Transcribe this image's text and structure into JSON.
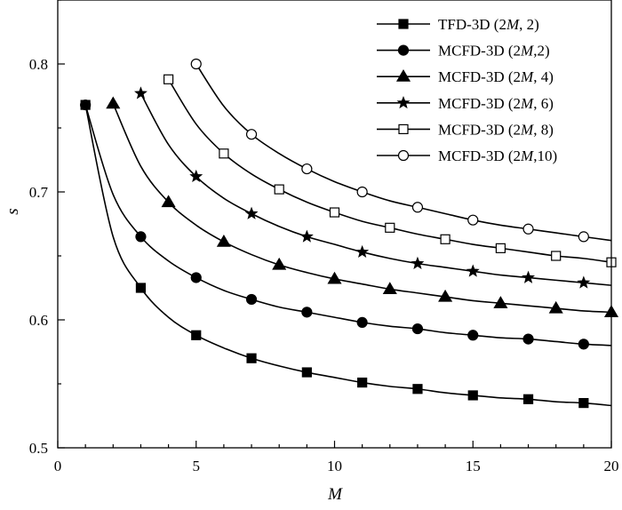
{
  "chart_data": {
    "type": "line",
    "xlabel": "M",
    "ylabel": "s",
    "xlim": [
      0,
      20
    ],
    "ylim": [
      0.5,
      0.85
    ],
    "xticks": [
      "0",
      "5",
      "10",
      "15",
      "20"
    ],
    "yticks": [
      "0.5",
      "0.6",
      "0.7",
      "0.8"
    ],
    "grid": false,
    "legend_position": "top-right",
    "series": [
      {
        "name": "TFD-3D (2M, 2)",
        "legend": {
          "pre": "TFD-3D (2",
          "it": "M",
          "post": ", 2)"
        },
        "marker": "square-filled",
        "x": [
          1,
          2,
          3,
          4,
          5,
          6,
          7,
          8,
          9,
          10,
          11,
          12,
          13,
          14,
          15,
          16,
          17,
          18,
          19,
          20
        ],
        "y": [
          0.768,
          0.665,
          0.625,
          0.602,
          0.588,
          0.578,
          0.57,
          0.564,
          0.559,
          0.555,
          0.551,
          0.548,
          0.546,
          0.543,
          0.541,
          0.539,
          0.538,
          0.536,
          0.535,
          0.533
        ],
        "marker_x": [
          1,
          3,
          5,
          7,
          9,
          11,
          13,
          15,
          17,
          19
        ]
      },
      {
        "name": "MCFD-3D (2M,2)",
        "legend": {
          "pre": "MCFD-3D (2",
          "it": "M",
          "post": ",2)"
        },
        "marker": "circle-filled",
        "x": [
          1,
          2,
          3,
          4,
          5,
          6,
          7,
          8,
          9,
          10,
          11,
          12,
          13,
          14,
          15,
          16,
          17,
          18,
          19,
          20
        ],
        "y": [
          0.768,
          0.698,
          0.665,
          0.646,
          0.633,
          0.623,
          0.616,
          0.61,
          0.606,
          0.602,
          0.598,
          0.595,
          0.593,
          0.59,
          0.588,
          0.586,
          0.585,
          0.583,
          0.581,
          0.58
        ],
        "marker_x": [
          1,
          3,
          5,
          7,
          9,
          11,
          13,
          15,
          17,
          19
        ]
      },
      {
        "name": "MCFD-3D (2M, 4)",
        "legend": {
          "pre": "MCFD-3D (2",
          "it": "M",
          "post": ", 4)"
        },
        "marker": "triangle-filled",
        "x": [
          2,
          3,
          4,
          5,
          6,
          7,
          8,
          9,
          10,
          11,
          12,
          13,
          14,
          15,
          16,
          17,
          18,
          19,
          20
        ],
        "y": [
          0.769,
          0.72,
          0.692,
          0.674,
          0.661,
          0.651,
          0.643,
          0.637,
          0.632,
          0.628,
          0.624,
          0.621,
          0.618,
          0.615,
          0.613,
          0.611,
          0.609,
          0.607,
          0.606
        ],
        "marker_x": [
          2,
          4,
          6,
          8,
          10,
          12,
          14,
          16,
          18,
          20
        ]
      },
      {
        "name": "MCFD-3D (2M, 6)",
        "legend": {
          "pre": "MCFD-3D (2",
          "it": "M",
          "post": ", 6)"
        },
        "marker": "star-filled",
        "x": [
          3,
          4,
          5,
          6,
          7,
          8,
          9,
          10,
          11,
          12,
          13,
          14,
          15,
          16,
          17,
          18,
          19,
          20
        ],
        "y": [
          0.777,
          0.737,
          0.712,
          0.695,
          0.683,
          0.673,
          0.665,
          0.659,
          0.653,
          0.648,
          0.644,
          0.641,
          0.638,
          0.635,
          0.633,
          0.631,
          0.629,
          0.627
        ],
        "marker_x": [
          3,
          5,
          7,
          9,
          11,
          13,
          15,
          17,
          19
        ]
      },
      {
        "name": "MCFD-3D (2M, 8)",
        "legend": {
          "pre": "MCFD-3D (2",
          "it": "M",
          "post": ", 8)"
        },
        "marker": "square-open",
        "x": [
          4,
          5,
          6,
          7,
          8,
          9,
          10,
          11,
          12,
          13,
          14,
          15,
          16,
          17,
          18,
          19,
          20
        ],
        "y": [
          0.788,
          0.753,
          0.73,
          0.714,
          0.702,
          0.692,
          0.684,
          0.677,
          0.672,
          0.667,
          0.663,
          0.659,
          0.656,
          0.653,
          0.65,
          0.648,
          0.645
        ],
        "marker_x": [
          4,
          6,
          8,
          10,
          12,
          14,
          16,
          18,
          20
        ]
      },
      {
        "name": "MCFD-3D (2M,10)",
        "legend": {
          "pre": "MCFD-3D (2",
          "it": "M",
          "post": ",10)"
        },
        "marker": "circle-open",
        "x": [
          5,
          6,
          7,
          8,
          9,
          10,
          11,
          12,
          13,
          14,
          15,
          16,
          17,
          18,
          19,
          20
        ],
        "y": [
          0.8,
          0.767,
          0.745,
          0.73,
          0.718,
          0.708,
          0.7,
          0.693,
          0.688,
          0.683,
          0.678,
          0.674,
          0.671,
          0.668,
          0.665,
          0.662
        ],
        "marker_x": [
          5,
          7,
          9,
          11,
          13,
          15,
          17,
          19
        ]
      }
    ]
  }
}
